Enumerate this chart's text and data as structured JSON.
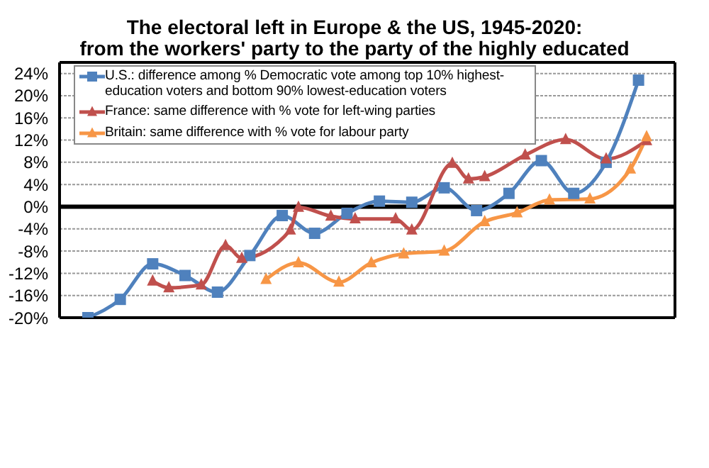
{
  "chart_data": {
    "type": "line",
    "title": "The electoral left in Europe & the US, 1945-2020:",
    "subtitle": "from the workers' party to the party of the highly educated",
    "categories": [
      null,
      null,
      null,
      null,
      null,
      null,
      null,
      null,
      null,
      null,
      null,
      null,
      null,
      null,
      null,
      null,
      null,
      null,
      null,
      null,
      null,
      null,
      null,
      null,
      null,
      null,
      null,
      null,
      null,
      null,
      null,
      null,
      null,
      null,
      null,
      null,
      null,
      null,
      null,
      null,
      null,
      null,
      null,
      null,
      null,
      null,
      null,
      null,
      null,
      null,
      null,
      null,
      null,
      null,
      null,
      null,
      null,
      null,
      null,
      null,
      null,
      null,
      null,
      null,
      null,
      null,
      null,
      null,
      null,
      null,
      null,
      null,
      null,
      null,
      null,
      null
    ],
    "series": [
      {
        "name": "U.S.: difference among % Democratic vote among top 10% highest-education voters and bottom 90% lowest-education voters",
        "color": "#4f81bd",
        "marker": "square",
        "values": [
          null,
          null,
          null,
          -20,
          null,
          null,
          null,
          -16.7,
          null,
          null,
          null,
          -10.3,
          null,
          null,
          null,
          -12.4,
          null,
          null,
          null,
          -15.4,
          null,
          null,
          null,
          -8.8,
          null,
          null,
          null,
          -1.6,
          null,
          null,
          null,
          -4.8,
          null,
          null,
          null,
          -1.2,
          null,
          null,
          null,
          1.0,
          null,
          null,
          null,
          0.8,
          null,
          null,
          null,
          3.4,
          null,
          null,
          null,
          -0.7,
          null,
          null,
          null,
          2.4,
          null,
          null,
          null,
          8.3,
          null,
          null,
          null,
          2.4,
          null,
          null,
          null,
          8.0,
          null,
          null,
          null,
          22.8,
          null,
          null,
          null,
          null
        ]
      },
      {
        "name": "France: same difference with % vote for left-wing parties",
        "color": "#c0504d",
        "marker": "triangle",
        "values": [
          null,
          null,
          null,
          null,
          null,
          null,
          null,
          null,
          null,
          null,
          null,
          -13.4,
          null,
          -14.6,
          null,
          null,
          null,
          -14.1,
          null,
          null,
          -7.0,
          null,
          -9.3,
          null,
          null,
          null,
          null,
          null,
          -4.2,
          -0.1,
          null,
          null,
          null,
          -1.7,
          null,
          null,
          -2.2,
          null,
          null,
          null,
          null,
          -2.2,
          null,
          -4.2,
          null,
          null,
          null,
          null,
          7.8,
          null,
          5.0,
          null,
          5.4,
          null,
          null,
          null,
          null,
          9.3,
          null,
          null,
          null,
          null,
          12.1,
          null,
          null,
          null,
          null,
          8.6,
          null,
          null,
          null,
          null,
          11.9,
          null,
          null,
          null
        ]
      },
      {
        "name": "Britain: same difference with % vote for labour party",
        "color": "#f79646",
        "marker": "triangle",
        "values": [
          null,
          null,
          null,
          null,
          null,
          null,
          null,
          null,
          null,
          null,
          null,
          null,
          null,
          null,
          null,
          null,
          null,
          null,
          null,
          null,
          null,
          null,
          null,
          null,
          null,
          -13.1,
          null,
          null,
          null,
          -10.1,
          null,
          null,
          null,
          null,
          -13.6,
          null,
          null,
          null,
          -10.1,
          null,
          null,
          null,
          -8.5,
          null,
          null,
          null,
          null,
          -8.0,
          null,
          null,
          null,
          null,
          -2.7,
          null,
          null,
          null,
          -1.1,
          null,
          null,
          null,
          1.2,
          null,
          null,
          null,
          null,
          1.4,
          null,
          null,
          null,
          null,
          6.8,
          null,
          12.6,
          null,
          null,
          null
        ]
      }
    ],
    "ylim": [
      -20,
      26
    ],
    "yticks": [
      {
        "value": -20,
        "label": "-20%"
      },
      {
        "value": -16,
        "label": "-16%"
      },
      {
        "value": -12,
        "label": "-12%"
      },
      {
        "value": -8,
        "label": "-8%"
      },
      {
        "value": -4,
        "label": "-4%"
      },
      {
        "value": 0,
        "label": "0%"
      },
      {
        "value": 4,
        "label": "4%"
      },
      {
        "value": 8,
        "label": "8%"
      },
      {
        "value": 12,
        "label": "12%"
      },
      {
        "value": 16,
        "label": "16%"
      },
      {
        "value": 20,
        "label": "20%"
      },
      {
        "value": 24,
        "label": "24%"
      }
    ],
    "ref_lines": [
      {
        "axis": "y",
        "value": 0,
        "color": "#000000"
      }
    ],
    "grid": true,
    "legend": "top left",
    "tick_labels": "y"
  }
}
